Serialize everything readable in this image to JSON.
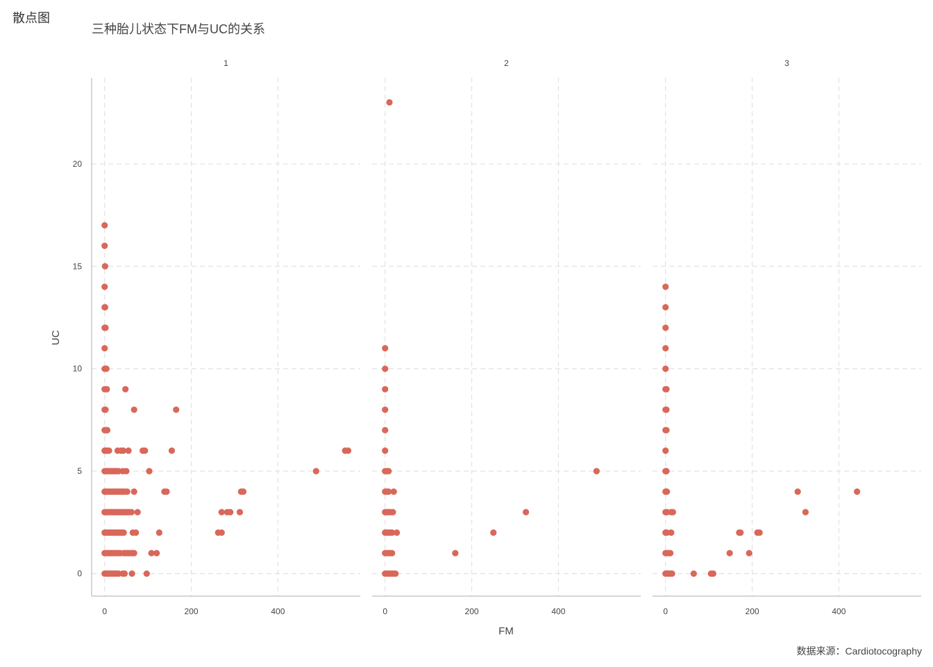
{
  "page_label": "散点图",
  "caption": "数据来源：Cardiotocography",
  "chart_data": {
    "type": "scatter",
    "title": "三种胎儿状态下FM与UC的关系",
    "xlabel": "FM",
    "ylabel": "UC",
    "xlim": [
      -30,
      590
    ],
    "ylim": [
      -1.1,
      24.2
    ],
    "x_ticks": [
      0,
      200,
      400
    ],
    "y_ticks": [
      0,
      5,
      10,
      15,
      20
    ],
    "grid": true,
    "point_color": "#d9675a",
    "facets": [
      {
        "label": "1",
        "points": [
          [
            0,
            17
          ],
          [
            0,
            16
          ],
          [
            1,
            15
          ],
          [
            0,
            14
          ],
          [
            0,
            13
          ],
          [
            1,
            13
          ],
          [
            0,
            12
          ],
          [
            2,
            12
          ],
          [
            0,
            11
          ],
          [
            0,
            10
          ],
          [
            2,
            10
          ],
          [
            4,
            10
          ],
          [
            0,
            9
          ],
          [
            3,
            9
          ],
          [
            5,
            9
          ],
          [
            48,
            9
          ],
          [
            0,
            8
          ],
          [
            2,
            8
          ],
          [
            68,
            8
          ],
          [
            165,
            8
          ],
          [
            0,
            7
          ],
          [
            2,
            7
          ],
          [
            4,
            7
          ],
          [
            6,
            7
          ],
          [
            0,
            6
          ],
          [
            3,
            6
          ],
          [
            6,
            6
          ],
          [
            10,
            6
          ],
          [
            30,
            6
          ],
          [
            38,
            6
          ],
          [
            43,
            6
          ],
          [
            55,
            6
          ],
          [
            88,
            6
          ],
          [
            93,
            6
          ],
          [
            155,
            6
          ],
          [
            555,
            6
          ],
          [
            562,
            6
          ],
          [
            0,
            5
          ],
          [
            4,
            5
          ],
          [
            8,
            5
          ],
          [
            12,
            5
          ],
          [
            16,
            5
          ],
          [
            20,
            5
          ],
          [
            24,
            5
          ],
          [
            28,
            5
          ],
          [
            32,
            5
          ],
          [
            42,
            5
          ],
          [
            50,
            5
          ],
          [
            103,
            5
          ],
          [
            488,
            5
          ],
          [
            0,
            4
          ],
          [
            3,
            4
          ],
          [
            6,
            4
          ],
          [
            10,
            4
          ],
          [
            14,
            4
          ],
          [
            18,
            4
          ],
          [
            22,
            4
          ],
          [
            26,
            4
          ],
          [
            30,
            4
          ],
          [
            34,
            4
          ],
          [
            38,
            4
          ],
          [
            42,
            4
          ],
          [
            46,
            4
          ],
          [
            52,
            4
          ],
          [
            68,
            4
          ],
          [
            138,
            4
          ],
          [
            143,
            4
          ],
          [
            315,
            4
          ],
          [
            320,
            4
          ],
          [
            0,
            3
          ],
          [
            4,
            3
          ],
          [
            8,
            3
          ],
          [
            12,
            3
          ],
          [
            16,
            3
          ],
          [
            20,
            3
          ],
          [
            24,
            3
          ],
          [
            28,
            3
          ],
          [
            32,
            3
          ],
          [
            36,
            3
          ],
          [
            40,
            3
          ],
          [
            44,
            3
          ],
          [
            48,
            3
          ],
          [
            52,
            3
          ],
          [
            56,
            3
          ],
          [
            62,
            3
          ],
          [
            76,
            3
          ],
          [
            270,
            3
          ],
          [
            283,
            3
          ],
          [
            290,
            3
          ],
          [
            312,
            3
          ],
          [
            0,
            2
          ],
          [
            4,
            2
          ],
          [
            8,
            2
          ],
          [
            12,
            2
          ],
          [
            16,
            2
          ],
          [
            20,
            2
          ],
          [
            24,
            2
          ],
          [
            28,
            2
          ],
          [
            32,
            2
          ],
          [
            36,
            2
          ],
          [
            40,
            2
          ],
          [
            44,
            2
          ],
          [
            65,
            2
          ],
          [
            72,
            2
          ],
          [
            126,
            2
          ],
          [
            262,
            2
          ],
          [
            270,
            2
          ],
          [
            0,
            1
          ],
          [
            4,
            1
          ],
          [
            8,
            1
          ],
          [
            12,
            1
          ],
          [
            16,
            1
          ],
          [
            20,
            1
          ],
          [
            24,
            1
          ],
          [
            28,
            1
          ],
          [
            32,
            1
          ],
          [
            36,
            1
          ],
          [
            44,
            1
          ],
          [
            48,
            1
          ],
          [
            52,
            1
          ],
          [
            56,
            1
          ],
          [
            60,
            1
          ],
          [
            64,
            1
          ],
          [
            68,
            1
          ],
          [
            108,
            1
          ],
          [
            120,
            1
          ],
          [
            0,
            0
          ],
          [
            4,
            0
          ],
          [
            8,
            0
          ],
          [
            12,
            0
          ],
          [
            16,
            0
          ],
          [
            20,
            0
          ],
          [
            24,
            0
          ],
          [
            28,
            0
          ],
          [
            32,
            0
          ],
          [
            42,
            0
          ],
          [
            46,
            0
          ],
          [
            63,
            0
          ],
          [
            97,
            0
          ]
        ]
      },
      {
        "label": "2",
        "points": [
          [
            10,
            23
          ],
          [
            0,
            11
          ],
          [
            0,
            10
          ],
          [
            0,
            9
          ],
          [
            0,
            8
          ],
          [
            0,
            7
          ],
          [
            0,
            6
          ],
          [
            0,
            5
          ],
          [
            4,
            5
          ],
          [
            8,
            5
          ],
          [
            0,
            4
          ],
          [
            4,
            4
          ],
          [
            8,
            4
          ],
          [
            20,
            4
          ],
          [
            0,
            3
          ],
          [
            4,
            3
          ],
          [
            8,
            3
          ],
          [
            12,
            3
          ],
          [
            18,
            3
          ],
          [
            0,
            2
          ],
          [
            4,
            2
          ],
          [
            8,
            2
          ],
          [
            12,
            2
          ],
          [
            16,
            2
          ],
          [
            27,
            2
          ],
          [
            0,
            1
          ],
          [
            4,
            1
          ],
          [
            8,
            1
          ],
          [
            12,
            1
          ],
          [
            16,
            1
          ],
          [
            0,
            0
          ],
          [
            4,
            0
          ],
          [
            8,
            0
          ],
          [
            12,
            0
          ],
          [
            16,
            0
          ],
          [
            20,
            0
          ],
          [
            24,
            0
          ],
          [
            162,
            1
          ],
          [
            250,
            2
          ],
          [
            325,
            3
          ],
          [
            488,
            5
          ]
        ]
      },
      {
        "label": "3",
        "points": [
          [
            0,
            14
          ],
          [
            0,
            13
          ],
          [
            0,
            12
          ],
          [
            0,
            11
          ],
          [
            0,
            10
          ],
          [
            0,
            9
          ],
          [
            2,
            9
          ],
          [
            0,
            8
          ],
          [
            2,
            8
          ],
          [
            0,
            7
          ],
          [
            2,
            7
          ],
          [
            0,
            6
          ],
          [
            0,
            5
          ],
          [
            2,
            5
          ],
          [
            0,
            4
          ],
          [
            3,
            4
          ],
          [
            0,
            3
          ],
          [
            3,
            3
          ],
          [
            13,
            3
          ],
          [
            17,
            3
          ],
          [
            0,
            2
          ],
          [
            3,
            2
          ],
          [
            13,
            2
          ],
          [
            0,
            1
          ],
          [
            3,
            1
          ],
          [
            7,
            1
          ],
          [
            11,
            1
          ],
          [
            0,
            0
          ],
          [
            3,
            0
          ],
          [
            6,
            0
          ],
          [
            9,
            0
          ],
          [
            12,
            0
          ],
          [
            15,
            0
          ],
          [
            65,
            0
          ],
          [
            105,
            0
          ],
          [
            110,
            0
          ],
          [
            148,
            1
          ],
          [
            193,
            1
          ],
          [
            170,
            2
          ],
          [
            173,
            2
          ],
          [
            212,
            2
          ],
          [
            217,
            2
          ],
          [
            305,
            4
          ],
          [
            442,
            4
          ],
          [
            323,
            3
          ]
        ]
      }
    ]
  }
}
